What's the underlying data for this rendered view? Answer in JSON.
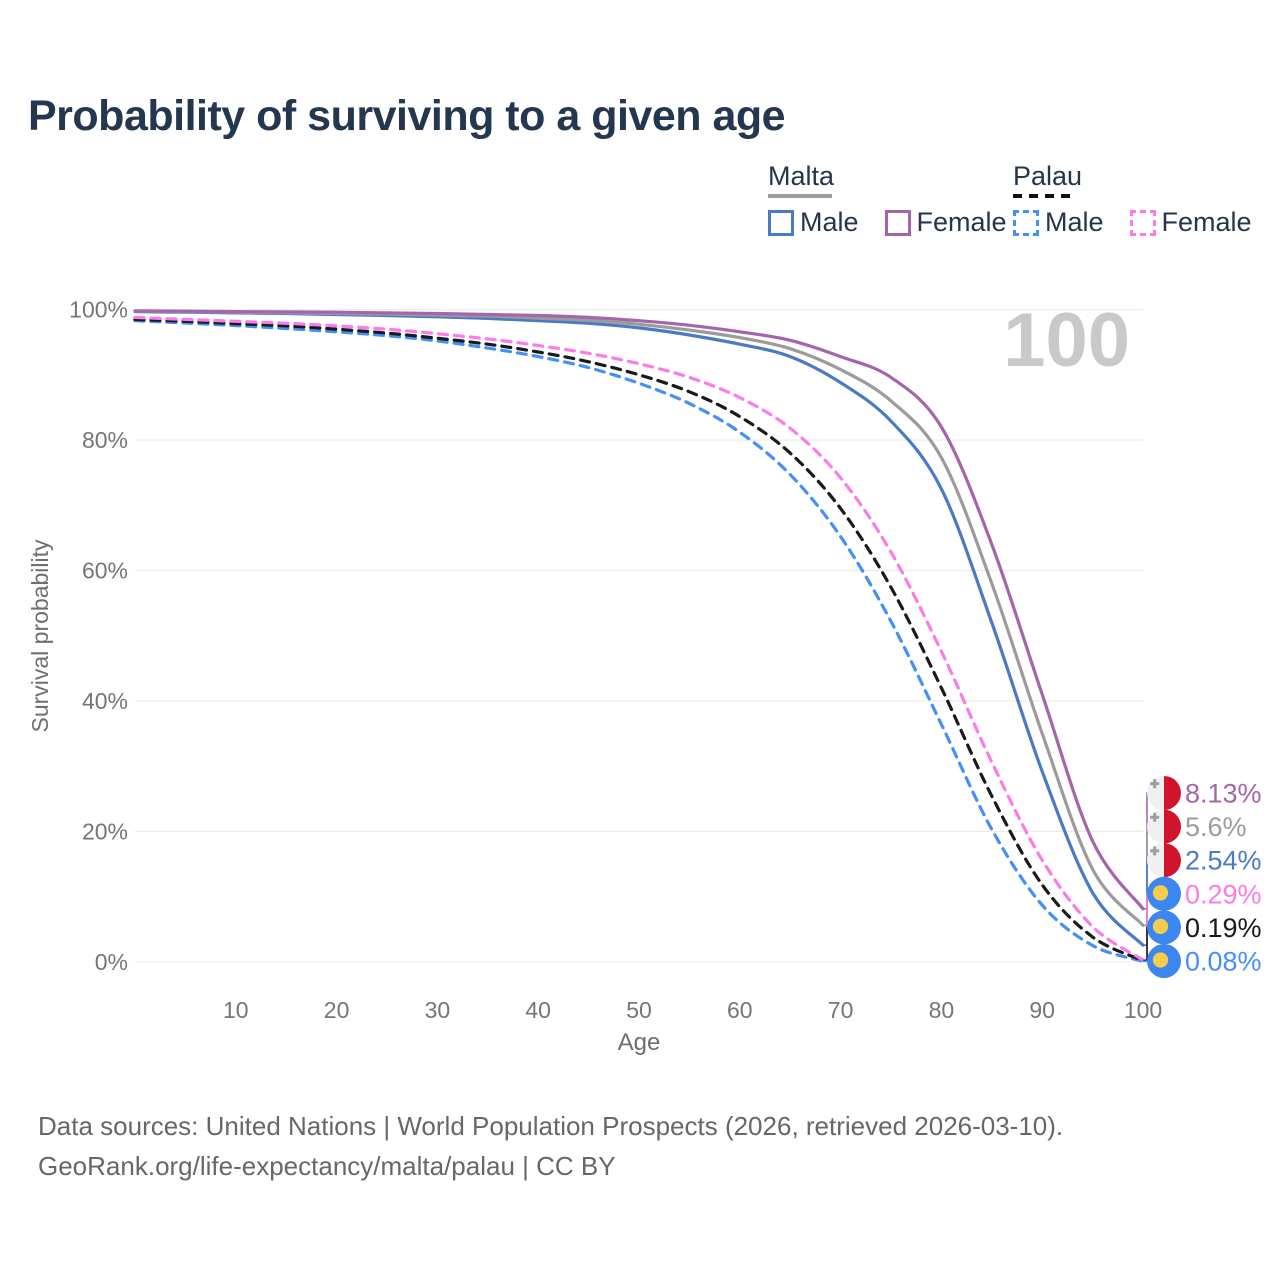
{
  "title": "Probability of surviving to a given age",
  "watermark_hover_age": "100",
  "legend": {
    "groups": [
      {
        "id": "malta",
        "label": "Malta",
        "line_style": "solid",
        "line_color": "#9b9b9b",
        "items": [
          {
            "id": "malta_male",
            "label": "Male",
            "color": "#4a7ac5",
            "style": "solid"
          },
          {
            "id": "malta_female",
            "label": "Female",
            "color": "#a565ab",
            "style": "solid"
          }
        ]
      },
      {
        "id": "palau",
        "label": "Palau",
        "line_style": "dashed",
        "line_color": "#111111",
        "items": [
          {
            "id": "palau_male",
            "label": "Male",
            "color": "#4490f7",
            "style": "dashed"
          },
          {
            "id": "palau_female",
            "label": "Female",
            "color": "#fb7ce8",
            "style": "dashed"
          }
        ]
      }
    ]
  },
  "chart_data": {
    "type": "line",
    "title": "Probability of surviving to a given age",
    "xlabel": "Age",
    "ylabel": "Survival probability",
    "xlim": [
      0,
      100
    ],
    "ylim": [
      0,
      100
    ],
    "x_ticks": [
      10,
      20,
      30,
      40,
      50,
      60,
      70,
      80,
      90,
      100
    ],
    "y_ticks": [
      0,
      20,
      40,
      60,
      80,
      100
    ],
    "y_tick_suffix": "%",
    "grid": "horizontal",
    "legend_position": "top-right",
    "ages": [
      0,
      5,
      10,
      15,
      20,
      25,
      30,
      35,
      40,
      45,
      50,
      55,
      60,
      65,
      70,
      75,
      80,
      85,
      90,
      95,
      100
    ],
    "series": [
      {
        "id": "malta_male",
        "country": "Malta",
        "sex": "Male",
        "color": "#4a7ac5",
        "dash": "solid",
        "flag": "malta",
        "end_label": "2.54%",
        "values": [
          99.7,
          99.6,
          99.5,
          99.4,
          99.25,
          99.1,
          98.9,
          98.65,
          98.3,
          97.9,
          97.2,
          96.1,
          94.7,
          92.8,
          88.8,
          82.9,
          72.5,
          52.0,
          29.2,
          10.6,
          2.54
        ]
      },
      {
        "id": "malta_all",
        "country": "Malta",
        "sex": "All",
        "color": "#9b9b9b",
        "dash": "solid",
        "flag": "malta",
        "end_label": "5.6%",
        "values": [
          99.75,
          99.7,
          99.6,
          99.5,
          99.4,
          99.3,
          99.15,
          99.0,
          98.7,
          98.35,
          97.75,
          96.85,
          95.7,
          94.0,
          90.8,
          86.0,
          77.3,
          58.0,
          35.0,
          14.2,
          5.6
        ]
      },
      {
        "id": "malta_female",
        "country": "Malta",
        "sex": "Female",
        "color": "#a565ab",
        "dash": "solid",
        "flag": "malta",
        "end_label": "8.13%",
        "values": [
          99.8,
          99.75,
          99.7,
          99.65,
          99.6,
          99.5,
          99.4,
          99.25,
          99.1,
          98.8,
          98.3,
          97.6,
          96.6,
          95.3,
          92.8,
          89.6,
          82.0,
          64.0,
          41.0,
          18.5,
          8.13
        ]
      },
      {
        "id": "palau_male",
        "country": "Palau",
        "sex": "Male",
        "color": "#4490f7",
        "dash": "dashed",
        "flag": "palau",
        "end_label": "0.08%",
        "values": [
          98.3,
          97.95,
          97.55,
          97.1,
          96.6,
          96.0,
          95.2,
          94.1,
          92.8,
          91.1,
          88.7,
          85.6,
          81.2,
          74.7,
          65.2,
          52.2,
          36.4,
          20.3,
          8.7,
          2.5,
          0.08
        ]
      },
      {
        "id": "palau_all",
        "country": "Palau",
        "sex": "All",
        "color": "#1a1a1a",
        "dash": "dashed",
        "flag": "palau",
        "end_label": "0.19%",
        "values": [
          98.5,
          98.2,
          97.85,
          97.5,
          97.0,
          96.4,
          95.6,
          94.7,
          93.5,
          92.0,
          90.0,
          87.4,
          83.6,
          78.0,
          69.5,
          57.4,
          42.0,
          25.4,
          11.8,
          3.8,
          0.19
        ]
      },
      {
        "id": "palau_female",
        "country": "Palau",
        "sex": "Female",
        "color": "#fb7ce8",
        "dash": "dashed",
        "flag": "palau",
        "end_label": "0.29%",
        "values": [
          98.8,
          98.5,
          98.2,
          97.9,
          97.5,
          97.0,
          96.3,
          95.5,
          94.5,
          93.3,
          91.7,
          89.6,
          86.5,
          81.8,
          74.2,
          62.8,
          47.6,
          30.6,
          15.6,
          5.4,
          0.29
        ]
      }
    ]
  },
  "footer": {
    "line1": "Data sources: United Nations | World Population Prospects (2026, retrieved 2026-03-10).",
    "line2": "GeoRank.org/life-expectancy/malta/palau | CC BY"
  }
}
